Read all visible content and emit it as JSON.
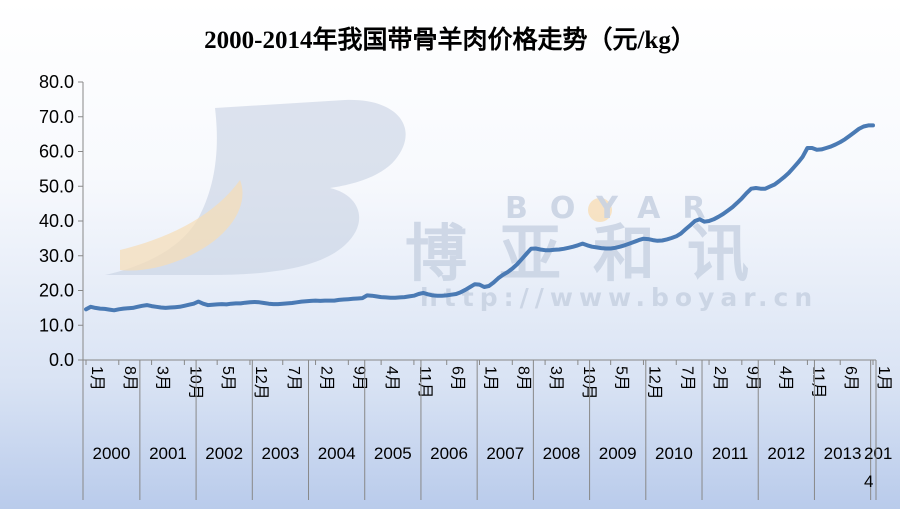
{
  "chart_data": {
    "type": "line",
    "title": "2000-2014年我国带骨羊肉价格走势（元/kg）",
    "xlabel": "",
    "ylabel": "",
    "ylim": [
      0,
      80
    ],
    "y_ticks": [
      "0.0",
      "10.0",
      "20.0",
      "30.0",
      "40.0",
      "50.0",
      "60.0",
      "70.0",
      "80.0"
    ],
    "grid": false,
    "legend": "none",
    "line_color": "#4a7ab4",
    "year_labels": [
      "2000",
      "2001",
      "2002",
      "2003",
      "2004",
      "2005",
      "2006",
      "2007",
      "2008",
      "2009",
      "2010",
      "2011",
      "2012",
      "2013",
      "2014"
    ],
    "month_tick_labels": [
      "1月",
      "8月",
      "3月",
      "10月",
      "5月",
      "12月",
      "7月",
      "2月",
      "9月",
      "4月",
      "11月",
      "6月",
      "1月",
      "8月",
      "3月",
      "10月",
      "5月",
      "12月",
      "7月",
      "2月",
      "9月",
      "4月",
      "11月",
      "6月",
      "1月"
    ],
    "x_start": "2000-01",
    "x_end": "2014-01",
    "x": [
      "2000-01",
      "2000-02",
      "2000-03",
      "2000-04",
      "2000-05",
      "2000-06",
      "2000-07",
      "2000-08",
      "2000-09",
      "2000-10",
      "2000-11",
      "2000-12",
      "2001-01",
      "2001-02",
      "2001-03",
      "2001-04",
      "2001-05",
      "2001-06",
      "2001-07",
      "2001-08",
      "2001-09",
      "2001-10",
      "2001-11",
      "2001-12",
      "2002-01",
      "2002-02",
      "2002-03",
      "2002-04",
      "2002-05",
      "2002-06",
      "2002-07",
      "2002-08",
      "2002-09",
      "2002-10",
      "2002-11",
      "2002-12",
      "2003-01",
      "2003-02",
      "2003-03",
      "2003-04",
      "2003-05",
      "2003-06",
      "2003-07",
      "2003-08",
      "2003-09",
      "2003-10",
      "2003-11",
      "2003-12",
      "2004-01",
      "2004-02",
      "2004-03",
      "2004-04",
      "2004-05",
      "2004-06",
      "2004-07",
      "2004-08",
      "2004-09",
      "2004-10",
      "2004-11",
      "2004-12",
      "2005-01",
      "2005-02",
      "2005-03",
      "2005-04",
      "2005-05",
      "2005-06",
      "2005-07",
      "2005-08",
      "2005-09",
      "2005-10",
      "2005-11",
      "2005-12",
      "2006-01",
      "2006-02",
      "2006-03",
      "2006-04",
      "2006-05",
      "2006-06",
      "2006-07",
      "2006-08",
      "2006-09",
      "2006-10",
      "2006-11",
      "2006-12",
      "2007-01",
      "2007-02",
      "2007-03",
      "2007-04",
      "2007-05",
      "2007-06",
      "2007-07",
      "2007-08",
      "2007-09",
      "2007-10",
      "2007-11",
      "2007-12",
      "2008-01",
      "2008-02",
      "2008-03",
      "2008-04",
      "2008-05",
      "2008-06",
      "2008-07",
      "2008-08",
      "2008-09",
      "2008-10",
      "2008-11",
      "2008-12",
      "2009-01",
      "2009-02",
      "2009-03",
      "2009-04",
      "2009-05",
      "2009-06",
      "2009-07",
      "2009-08",
      "2009-09",
      "2009-10",
      "2009-11",
      "2009-12",
      "2010-01",
      "2010-02",
      "2010-03",
      "2010-04",
      "2010-05",
      "2010-06",
      "2010-07",
      "2010-08",
      "2010-09",
      "2010-10",
      "2010-11",
      "2010-12",
      "2011-01",
      "2011-02",
      "2011-03",
      "2011-04",
      "2011-05",
      "2011-06",
      "2011-07",
      "2011-08",
      "2011-09",
      "2011-10",
      "2011-11",
      "2011-12",
      "2012-01",
      "2012-02",
      "2012-03",
      "2012-04",
      "2012-05",
      "2012-06",
      "2012-07",
      "2012-08",
      "2012-09",
      "2012-10",
      "2012-11",
      "2012-12",
      "2013-01",
      "2013-02",
      "2013-03",
      "2013-04",
      "2013-05",
      "2013-06",
      "2013-07",
      "2013-08",
      "2013-09",
      "2013-10",
      "2013-11",
      "2013-12",
      "2014-01"
    ],
    "series": [
      {
        "values": [
          14.6,
          15.3,
          15.0,
          14.8,
          14.7,
          14.5,
          14.3,
          14.6,
          14.8,
          14.9,
          15.0,
          15.3,
          15.6,
          15.8,
          15.5,
          15.3,
          15.1,
          15.0,
          15.1,
          15.2,
          15.3,
          15.6,
          15.9,
          16.2,
          16.8,
          16.2,
          15.8,
          15.9,
          16.0,
          16.1,
          16.0,
          16.2,
          16.3,
          16.3,
          16.5,
          16.6,
          16.7,
          16.6,
          16.4,
          16.2,
          16.1,
          16.1,
          16.2,
          16.3,
          16.4,
          16.6,
          16.8,
          16.9,
          17.0,
          17.1,
          17.0,
          17.1,
          17.1,
          17.1,
          17.3,
          17.4,
          17.5,
          17.6,
          17.7,
          17.8,
          18.6,
          18.5,
          18.3,
          18.1,
          18.0,
          17.9,
          17.9,
          18.0,
          18.1,
          18.3,
          18.5,
          19.0,
          19.3,
          18.9,
          18.6,
          18.5,
          18.5,
          18.6,
          18.8,
          19.0,
          19.5,
          20.2,
          21.0,
          21.8,
          21.7,
          21.0,
          21.3,
          22.3,
          23.5,
          24.5,
          25.3,
          26.3,
          27.5,
          29.0,
          30.5,
          32.0,
          32.1,
          31.8,
          31.6,
          31.6,
          31.7,
          31.8,
          32.0,
          32.3,
          32.6,
          33.0,
          33.5,
          33.0,
          32.6,
          32.4,
          32.2,
          32.1,
          32.1,
          32.3,
          32.6,
          33.0,
          33.5,
          34.0,
          34.5,
          34.9,
          34.8,
          34.5,
          34.3,
          34.4,
          34.7,
          35.1,
          35.6,
          36.4,
          37.6,
          38.8,
          40.0,
          40.5,
          39.8,
          40.0,
          40.5,
          41.2,
          42.0,
          43.0,
          44.0,
          45.2,
          46.5,
          48.0,
          49.3,
          49.5,
          49.3,
          49.3,
          49.9,
          50.5,
          51.5,
          52.6,
          53.8,
          55.3,
          56.8,
          58.5,
          61.0,
          61.0,
          60.5,
          60.6,
          61.0,
          61.4,
          62.0,
          62.7,
          63.5,
          64.5,
          65.5,
          66.5,
          67.2,
          67.5,
          67.5
        ]
      }
    ]
  },
  "watermark": {
    "brand_cn": "博亚和讯",
    "brand_en": "BOYAR",
    "url": "http://www.boyar.cn",
    "colors": {
      "blue_logo": "#c3cde0",
      "orange_logo": "#f7ddb5",
      "text": "#c9d3e3"
    }
  }
}
